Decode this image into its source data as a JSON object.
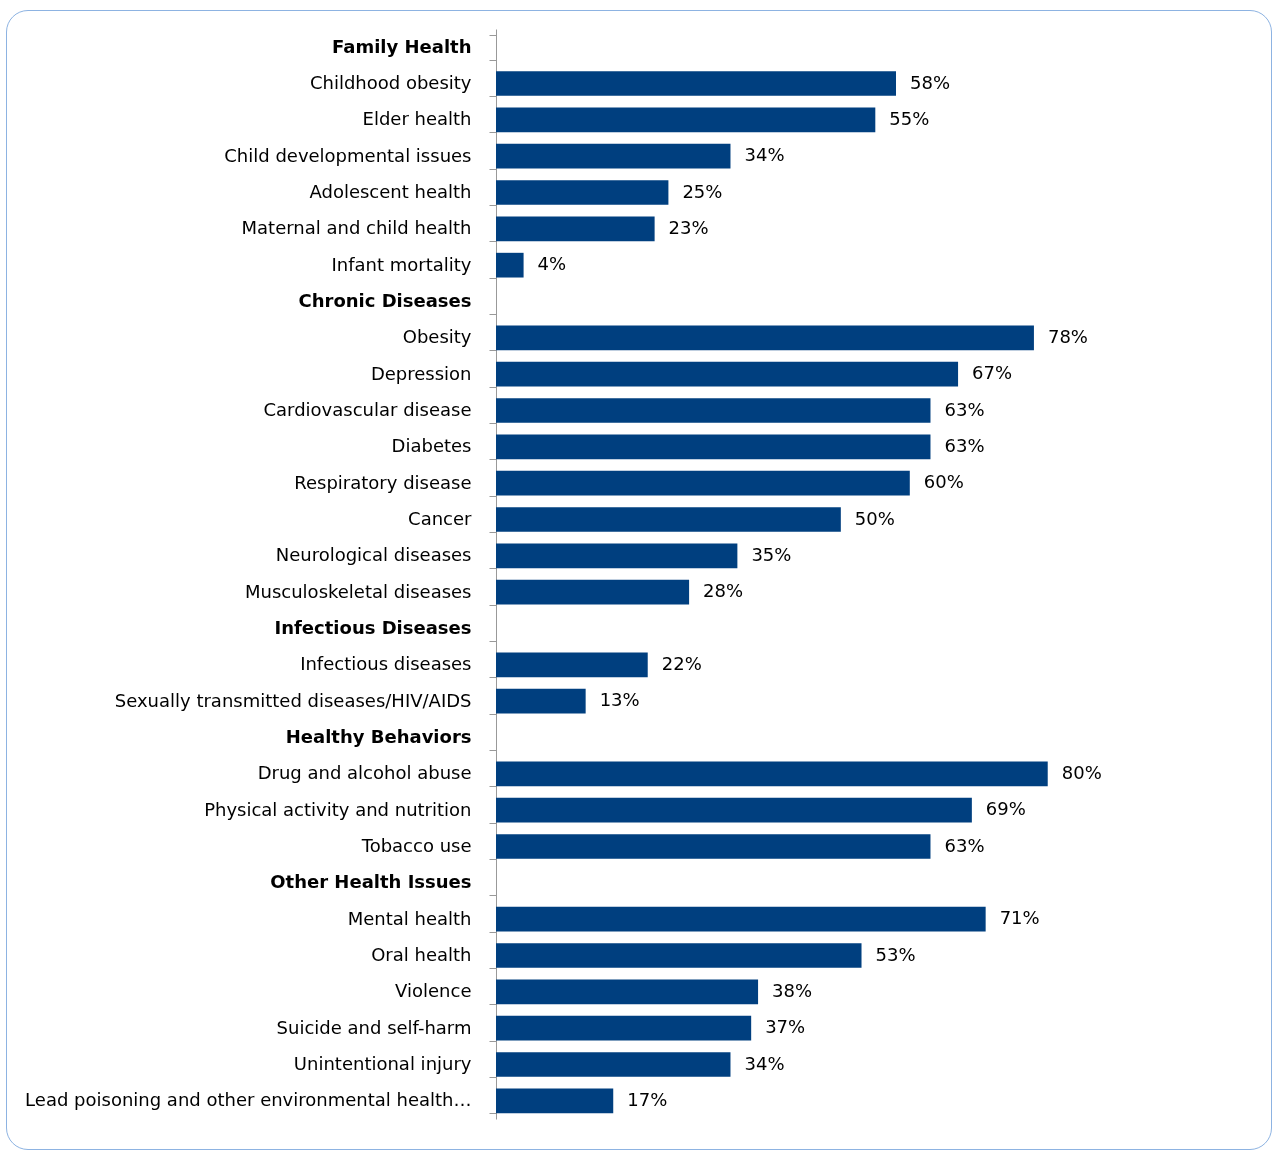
{
  "chart_data": {
    "type": "bar",
    "orientation": "horizontal",
    "categories": [
      "Family Health",
      "Childhood obesity",
      "Elder health",
      "Child developmental issues",
      "Adolescent health",
      "Maternal and child health",
      "Infant mortality",
      "Chronic Diseases",
      "Obesity",
      "Depression",
      "Cardiovascular disease",
      "Diabetes",
      "Respiratory disease",
      "Cancer",
      "Neurological diseases",
      "Musculoskeletal diseases",
      "Infectious Diseases",
      "Infectious diseases",
      "Sexually transmitted diseases/HIV/AIDS",
      "Healthy Behaviors",
      "Drug and alcohol abuse",
      "Physical activity and nutrition",
      "Tobacco use",
      "Other Health Issues",
      "Mental health",
      "Oral health",
      "Violence",
      "Suicide and self-harm",
      "Unintentional injury",
      "Lead poisoning and other environmental health…"
    ],
    "values": [
      null,
      58,
      55,
      34,
      25,
      23,
      4,
      null,
      78,
      67,
      63,
      63,
      60,
      50,
      35,
      28,
      null,
      22,
      13,
      null,
      80,
      69,
      63,
      null,
      71,
      53,
      38,
      37,
      34,
      17
    ],
    "value_labels": [
      null,
      "58%",
      "55%",
      "34%",
      "25%",
      "23%",
      "4%",
      null,
      "78%",
      "67%",
      "63%",
      "63%",
      "60%",
      "50%",
      "35%",
      "28%",
      null,
      "22%",
      "13%",
      null,
      "80%",
      "69%",
      "63%",
      null,
      "71%",
      "53%",
      "38%",
      "37%",
      "34%",
      "17%"
    ],
    "color": "#003f7f"
  }
}
